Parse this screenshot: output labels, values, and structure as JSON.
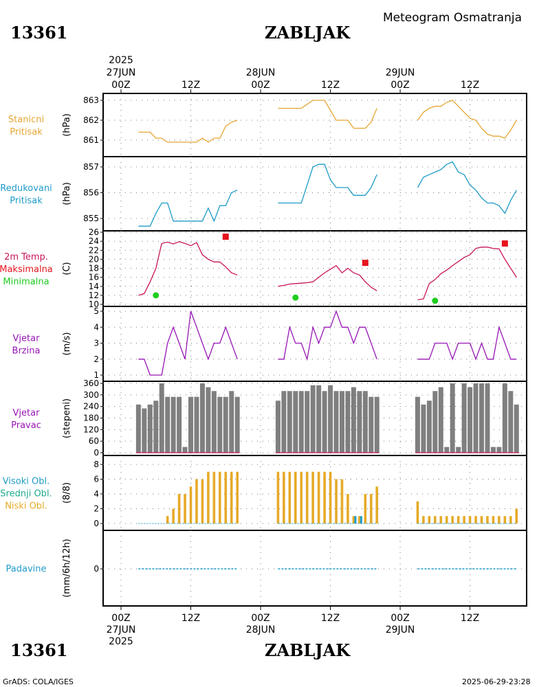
{
  "header": {
    "station_id": "13361",
    "station_name": "ZABLJAK",
    "title": "Meteogram Osmatranja"
  },
  "footer": {
    "station_id": "13361",
    "station_name": "ZABLJAK",
    "credit": "GrADS: COLA/IGES",
    "timestamp": "2025-06-29-23:28"
  },
  "colors": {
    "pressure": "#e6a532",
    "reduced": "#1e9bc8",
    "temp": "#c8145a",
    "tmax": "#e6141e",
    "tmin": "#1ecd1e",
    "wind": "#9614b4",
    "bar": "#7f7f7f",
    "cloud": "#e6aa28",
    "cloud_low": "#1e9bc8",
    "precip": "#1e9bc8",
    "grid": "#777777"
  },
  "time_axis": {
    "top": [
      {
        "t": 0,
        "label": "00Z",
        "date": "27JUN",
        "year": "2025"
      },
      {
        "t": 12,
        "label": "12Z"
      },
      {
        "t": 24,
        "label": "00Z",
        "date": "28JUN"
      },
      {
        "t": 36,
        "label": "12Z"
      },
      {
        "t": 48,
        "label": "00Z",
        "date": "29JUN"
      },
      {
        "t": 60,
        "label": "12Z"
      }
    ],
    "bottom": [
      {
        "t": 0,
        "label": "00Z",
        "date": "27JUN",
        "year": "2025"
      },
      {
        "t": 12,
        "label": "12Z"
      },
      {
        "t": 24,
        "label": "00Z",
        "date": "28JUN"
      },
      {
        "t": 36,
        "label": "12Z"
      },
      {
        "t": 48,
        "label": "00Z",
        "date": "29JUN"
      },
      {
        "t": 60,
        "label": "12Z"
      }
    ]
  },
  "chart_data": [
    {
      "type": "line",
      "name": "station_pressure",
      "labels": [
        "Stanicni",
        "Pritisak"
      ],
      "unit": "(hPa)",
      "ylim": [
        860.5,
        863.1
      ],
      "yticks": [
        861,
        862,
        863
      ],
      "segments": [
        {
          "x": [
            3,
            4,
            5,
            6,
            7,
            8,
            9,
            10,
            11,
            12,
            13,
            14,
            15,
            16,
            17,
            18,
            19,
            20
          ],
          "y": [
            861.4,
            861.4,
            861.4,
            861.1,
            861.1,
            860.9,
            860.9,
            860.9,
            860.9,
            860.9,
            860.9,
            861.1,
            860.9,
            861.1,
            861.1,
            861.7,
            861.9,
            862.0
          ]
        },
        {
          "x": [
            27,
            28,
            29,
            30,
            31,
            32,
            33,
            34,
            35,
            36,
            37,
            38,
            39,
            40,
            41,
            42,
            43,
            44
          ],
          "y": [
            862.6,
            862.6,
            862.6,
            862.6,
            862.6,
            862.8,
            863.0,
            863.0,
            863.0,
            862.5,
            862.0,
            862.0,
            862.0,
            861.6,
            861.6,
            861.6,
            861.9,
            862.6
          ]
        },
        {
          "x": [
            51,
            52,
            53,
            54,
            55,
            56,
            57,
            58,
            59,
            60,
            61,
            62,
            63,
            64,
            65,
            66,
            67,
            68
          ],
          "y": [
            862.0,
            862.4,
            862.6,
            862.7,
            862.7,
            862.9,
            863.0,
            862.7,
            862.4,
            862.1,
            862.0,
            861.6,
            861.3,
            861.2,
            861.2,
            861.1,
            861.5,
            862.0
          ]
        }
      ]
    },
    {
      "type": "line",
      "name": "reduced_pressure",
      "labels": [
        "Redukovani",
        "Pritisak"
      ],
      "unit": "(hPa)",
      "ylim": [
        854.7,
        857.2
      ],
      "yticks": [
        855,
        856,
        857
      ],
      "segments": [
        {
          "x": [
            3,
            4,
            5,
            6,
            7,
            8,
            9,
            10,
            11,
            12,
            13,
            14,
            15,
            16,
            17,
            18,
            19,
            20
          ],
          "y": [
            854.7,
            854.7,
            854.7,
            855.2,
            855.6,
            855.6,
            854.9,
            854.9,
            854.9,
            854.9,
            854.9,
            854.9,
            855.4,
            854.9,
            855.5,
            855.5,
            856.0,
            856.1
          ]
        },
        {
          "x": [
            27,
            28,
            29,
            30,
            31,
            32,
            33,
            34,
            35,
            36,
            37,
            38,
            39,
            40,
            41,
            42,
            43,
            44
          ],
          "y": [
            855.6,
            855.6,
            855.6,
            855.6,
            855.6,
            856.3,
            857.0,
            857.1,
            857.1,
            856.5,
            856.2,
            856.2,
            856.2,
            855.9,
            855.9,
            855.9,
            856.2,
            856.7
          ]
        },
        {
          "x": [
            51,
            52,
            53,
            54,
            55,
            56,
            57,
            58,
            59,
            60,
            61,
            62,
            63,
            64,
            65,
            66,
            67,
            68
          ],
          "y": [
            856.2,
            856.6,
            856.7,
            856.8,
            856.9,
            857.1,
            857.2,
            856.8,
            856.7,
            856.3,
            856.1,
            855.8,
            855.6,
            855.6,
            855.5,
            855.2,
            855.7,
            856.1
          ]
        }
      ]
    },
    {
      "type": "line",
      "name": "temperature",
      "labels": [
        "2m Temp.",
        "Maksimalna",
        "Minimalna"
      ],
      "unit": "(C)",
      "ylim": [
        10,
        26
      ],
      "yticks": [
        10,
        12,
        14,
        16,
        18,
        20,
        22,
        24,
        26
      ],
      "segments": [
        {
          "x": [
            3,
            4,
            5,
            6,
            7,
            8,
            9,
            10,
            11,
            12,
            13,
            14,
            15,
            16,
            17,
            18,
            19,
            20
          ],
          "y": [
            12.0,
            12.4,
            15.0,
            18.0,
            23.5,
            23.8,
            23.4,
            23.9,
            23.5,
            23.0,
            23.7,
            21.0,
            20.0,
            19.4,
            19.4,
            18.3,
            17.0,
            16.5
          ]
        },
        {
          "x": [
            27,
            28,
            29,
            30,
            31,
            32,
            33,
            34,
            35,
            36,
            37,
            38,
            39,
            40,
            41,
            42,
            43,
            44
          ],
          "y": [
            14.0,
            14.2,
            14.5,
            14.6,
            14.7,
            14.8,
            15.0,
            16.0,
            17.0,
            17.8,
            18.6,
            17.0,
            18.0,
            17.0,
            16.5,
            15.0,
            13.8,
            13.0
          ]
        },
        {
          "x": [
            51,
            52,
            53,
            54,
            55,
            56,
            57,
            58,
            59,
            60,
            61,
            62,
            63,
            64,
            65,
            66,
            67,
            68
          ],
          "y": [
            11.0,
            11.2,
            14.6,
            15.5,
            16.8,
            17.6,
            18.6,
            19.5,
            20.4,
            21.0,
            22.4,
            22.7,
            22.7,
            22.4,
            22.3,
            20.0,
            18.0,
            16.0
          ]
        }
      ],
      "tmax": [
        {
          "x": 18,
          "y": 25.0
        },
        {
          "x": 42,
          "y": 19.2
        },
        {
          "x": 66,
          "y": 23.5
        }
      ],
      "tmin": [
        {
          "x": 6,
          "y": 12.0
        },
        {
          "x": 30,
          "y": 11.5
        },
        {
          "x": 54,
          "y": 10.8
        }
      ]
    },
    {
      "type": "line",
      "name": "wind_speed",
      "labels": [
        "Vjetar",
        "Brzina"
      ],
      "unit": "(m/s)",
      "ylim": [
        1,
        5
      ],
      "yticks": [
        1,
        2,
        3,
        4,
        5
      ],
      "segments": [
        {
          "x": [
            3,
            4,
            5,
            6,
            7,
            8,
            9,
            10,
            11,
            12,
            13,
            14,
            15,
            16,
            17,
            18,
            19,
            20
          ],
          "y": [
            2,
            2,
            1,
            1,
            1,
            3,
            4,
            3,
            2,
            5,
            4,
            3,
            2,
            3,
            3,
            4,
            3,
            2
          ]
        },
        {
          "x": [
            27,
            28,
            29,
            30,
            31,
            32,
            33,
            34,
            35,
            36,
            37,
            38,
            39,
            40,
            41,
            42,
            43,
            44
          ],
          "y": [
            2,
            2,
            4,
            3,
            3,
            2,
            4,
            3,
            4,
            4,
            5,
            4,
            4,
            3,
            4,
            4,
            3,
            2
          ]
        },
        {
          "x": [
            51,
            52,
            53,
            54,
            55,
            56,
            57,
            58,
            59,
            60,
            61,
            62,
            63,
            64,
            65,
            66,
            67,
            68
          ],
          "y": [
            2,
            2,
            2,
            3,
            3,
            3,
            2,
            3,
            3,
            3,
            2,
            3,
            2,
            2,
            4,
            3,
            2,
            2
          ]
        }
      ]
    },
    {
      "type": "bar",
      "name": "wind_direction",
      "labels": [
        "Vjetar",
        "Pravac"
      ],
      "unit": "(stepeni)",
      "ylim": [
        0,
        360
      ],
      "yticks": [
        0,
        60,
        120,
        180,
        240,
        300,
        360
      ],
      "segments": [
        {
          "x": [
            3,
            4,
            5,
            6,
            7,
            8,
            9,
            10,
            11,
            12,
            13,
            14,
            15,
            16,
            17,
            18,
            19,
            20
          ],
          "y": [
            250,
            230,
            250,
            270,
            360,
            290,
            290,
            290,
            30,
            290,
            290,
            360,
            340,
            320,
            290,
            290,
            320,
            290
          ]
        },
        {
          "x": [
            27,
            28,
            29,
            30,
            31,
            32,
            33,
            34,
            35,
            36,
            37,
            38,
            39,
            40,
            41,
            42,
            43,
            44
          ],
          "y": [
            270,
            320,
            320,
            320,
            320,
            320,
            350,
            350,
            320,
            350,
            320,
            320,
            320,
            340,
            320,
            320,
            290,
            290
          ]
        },
        {
          "x": [
            51,
            52,
            53,
            54,
            55,
            56,
            57,
            58,
            59,
            60,
            61,
            62,
            63,
            64,
            65,
            66,
            67,
            68
          ],
          "y": [
            290,
            250,
            270,
            320,
            340,
            30,
            360,
            30,
            360,
            340,
            360,
            360,
            360,
            30,
            30,
            360,
            320,
            250
          ]
        }
      ]
    },
    {
      "type": "bar",
      "name": "cloud_cover",
      "labels": [
        "Visoki Obl.",
        "Srednji Obl.",
        "Niski Obl."
      ],
      "label_colors": [
        "#1e9bc8",
        "#1eaa8c",
        "#e6aa28"
      ],
      "unit": "(8/8)",
      "ylim": [
        0,
        8
      ],
      "yticks": [
        0,
        2,
        4,
        6,
        8
      ],
      "segments": [
        {
          "x": [
            3,
            4,
            5,
            6,
            7,
            8,
            9,
            10,
            11,
            12,
            13,
            14,
            15,
            16,
            17,
            18,
            19,
            20
          ],
          "y": [
            0,
            0,
            0,
            0,
            0,
            1,
            2,
            4,
            4,
            5,
            6,
            6,
            7,
            7,
            7,
            7,
            7,
            7
          ]
        },
        {
          "x": [
            27,
            28,
            29,
            30,
            31,
            32,
            33,
            34,
            35,
            36,
            37,
            38,
            39,
            40,
            41,
            42,
            43,
            44
          ],
          "y": [
            7,
            7,
            7,
            7,
            7,
            7,
            7,
            7,
            7,
            7,
            6,
            6,
            4,
            1,
            1,
            4,
            4,
            5
          ]
        },
        {
          "x": [
            51,
            52,
            53,
            54,
            55,
            56,
            57,
            58,
            59,
            60,
            61,
            62,
            63,
            64,
            65,
            66,
            67,
            68
          ],
          "y": [
            3,
            1,
            1,
            1,
            1,
            1,
            1,
            1,
            1,
            1,
            1,
            1,
            1,
            1,
            1,
            1,
            1,
            2
          ]
        }
      ],
      "low_cloud": [
        {
          "x": 40,
          "y": 1
        },
        {
          "x": 41,
          "y": 1
        }
      ]
    },
    {
      "type": "line",
      "name": "precipitation",
      "labels": [
        "Padavine"
      ],
      "unit": "(mm/6h/12h)",
      "ylim": [
        -1,
        1
      ],
      "yticks": [
        0
      ],
      "segments": [
        {
          "x": [
            3,
            20
          ],
          "y": [
            0,
            0
          ]
        },
        {
          "x": [
            27,
            44
          ],
          "y": [
            0,
            0
          ]
        },
        {
          "x": [
            51,
            68
          ],
          "y": [
            0,
            0
          ]
        }
      ]
    }
  ]
}
